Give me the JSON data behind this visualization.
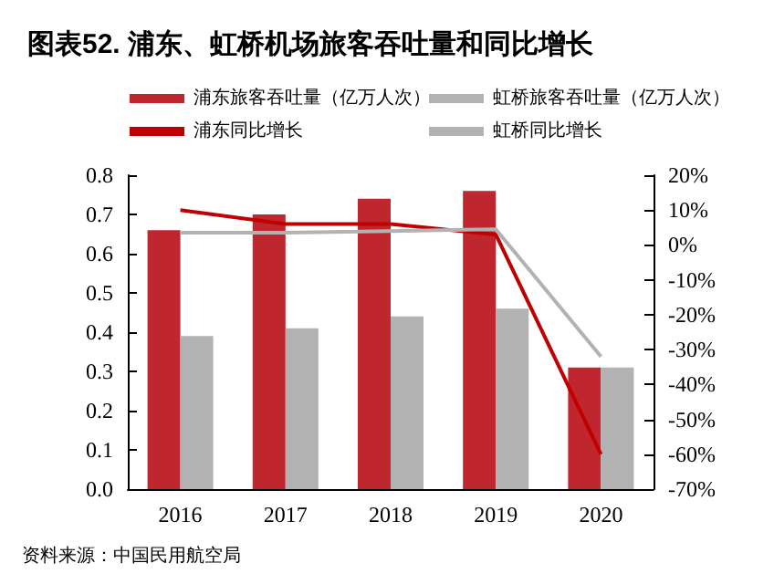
{
  "chart_data": {
    "type": "bar",
    "title": "图表52. 浦东、虹桥机场旅客吞吐量和同比增长",
    "categories": [
      "2016",
      "2017",
      "2018",
      "2019",
      "2020"
    ],
    "series": [
      {
        "name": "浦东旅客吞吐量（亿万人次）",
        "color": "#c0262e",
        "values": [
          0.66,
          0.7,
          0.74,
          0.76,
          0.31
        ]
      },
      {
        "name": "虹桥旅客吞吐量（亿万人次）",
        "color": "#b2b2b2",
        "values": [
          0.39,
          0.41,
          0.44,
          0.46,
          0.31
        ]
      },
      {
        "name": "浦东同比增长",
        "type": "line",
        "axis": "y2",
        "color": "#c00000",
        "values": [
          10,
          6,
          6,
          3,
          -60
        ]
      },
      {
        "name": "虹桥同比增长",
        "type": "line",
        "axis": "y2",
        "color": "#b2b2b2",
        "values": [
          3.5,
          3.5,
          4,
          4.5,
          -32
        ]
      }
    ],
    "ylim": [
      0,
      0.8
    ],
    "yticks": [
      {
        "value": 0,
        "label": "0.0"
      },
      0.1,
      0.2,
      0.3,
      0.4,
      0.5,
      0.6,
      0.7,
      0.8
    ],
    "y2lim": [
      -70,
      20
    ],
    "y2ticks": [
      {
        "value": -70,
        "label": "-70%"
      },
      {
        "value": -60,
        "label": "-60%"
      },
      {
        "value": -50,
        "label": "-50%"
      },
      {
        "value": -40,
        "label": "-40%"
      },
      {
        "value": -30,
        "label": "-30%"
      },
      {
        "value": -20,
        "label": "-20%"
      },
      {
        "value": -10,
        "label": "-10%"
      },
      {
        "value": 0,
        "label": "0%"
      },
      {
        "value": 10,
        "label": "10%"
      },
      {
        "value": 20,
        "label": "20%"
      }
    ],
    "legend": "top",
    "grid": false,
    "marker": "none",
    "annotations": [
      "资料来源：中国民用航空局"
    ]
  }
}
